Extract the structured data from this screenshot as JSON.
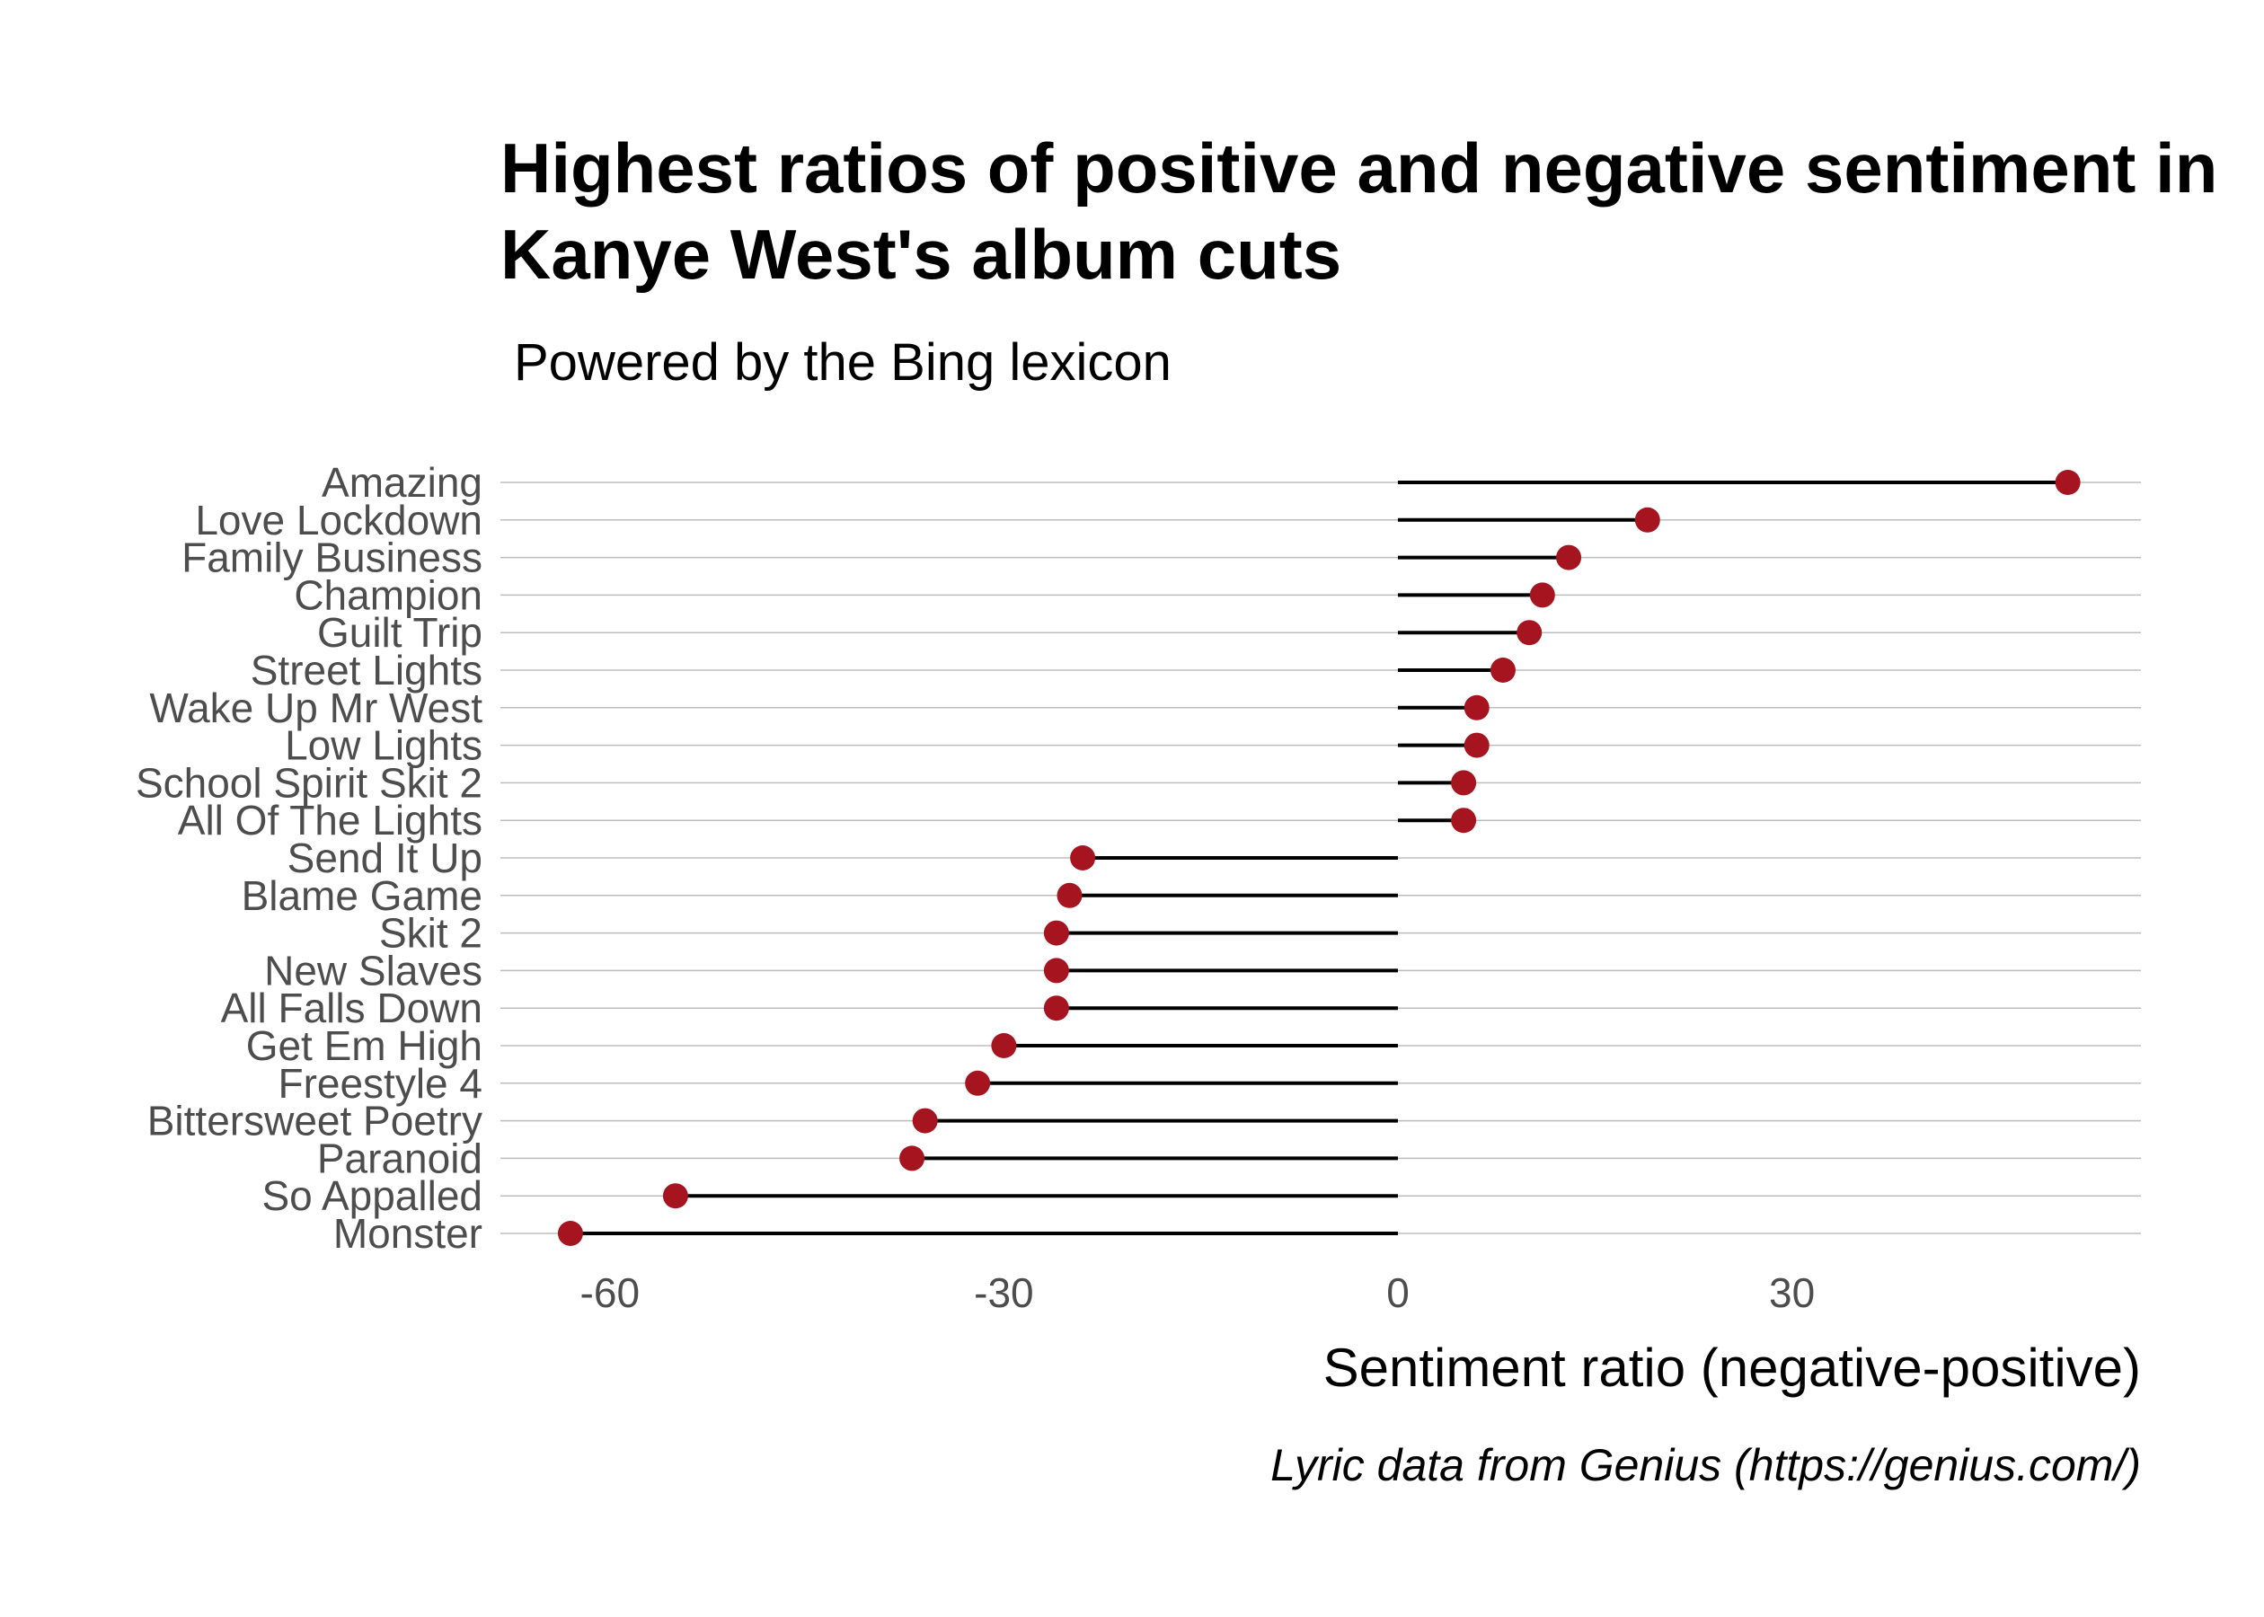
{
  "chart_data": {
    "type": "lollipop",
    "title_line1": "Highest ratios of positive and negative sentiment in",
    "title_line2": "Kanye West's album cuts",
    "subtitle": "Powered by the Bing lexicon",
    "xlabel": "Sentiment ratio (negative-positive)",
    "caption": "Lyric data from Genius (https://genius.com/)",
    "xlim": [
      -68,
      57
    ],
    "xticks": [
      -60,
      -30,
      0,
      30
    ],
    "xtick_labels": [
      "-60",
      "-30",
      "0",
      "30"
    ],
    "grid": "horizontal",
    "legend": "none",
    "colors": {
      "point": "#a6141f",
      "segment": "#000000",
      "grid": "#bdbdbd"
    },
    "categories": [
      "Amazing",
      "Love Lockdown",
      "Family Business",
      "Champion",
      "Guilt Trip",
      "Street Lights",
      "Wake Up Mr West",
      "Low Lights",
      "School Spirit Skit 2",
      "All Of The Lights",
      "Send It Up",
      "Blame Game",
      "Skit 2",
      "New Slaves",
      "All Falls Down",
      "Get Em High",
      "Freestyle 4",
      "Bittersweet Poetry",
      "Paranoid",
      "So Appalled",
      "Monster"
    ],
    "values": [
      51,
      19,
      13,
      11,
      10,
      8,
      6,
      6,
      5,
      5,
      -24,
      -25,
      -26,
      -26,
      -26,
      -30,
      -32,
      -36,
      -37,
      -55,
      -63
    ]
  }
}
